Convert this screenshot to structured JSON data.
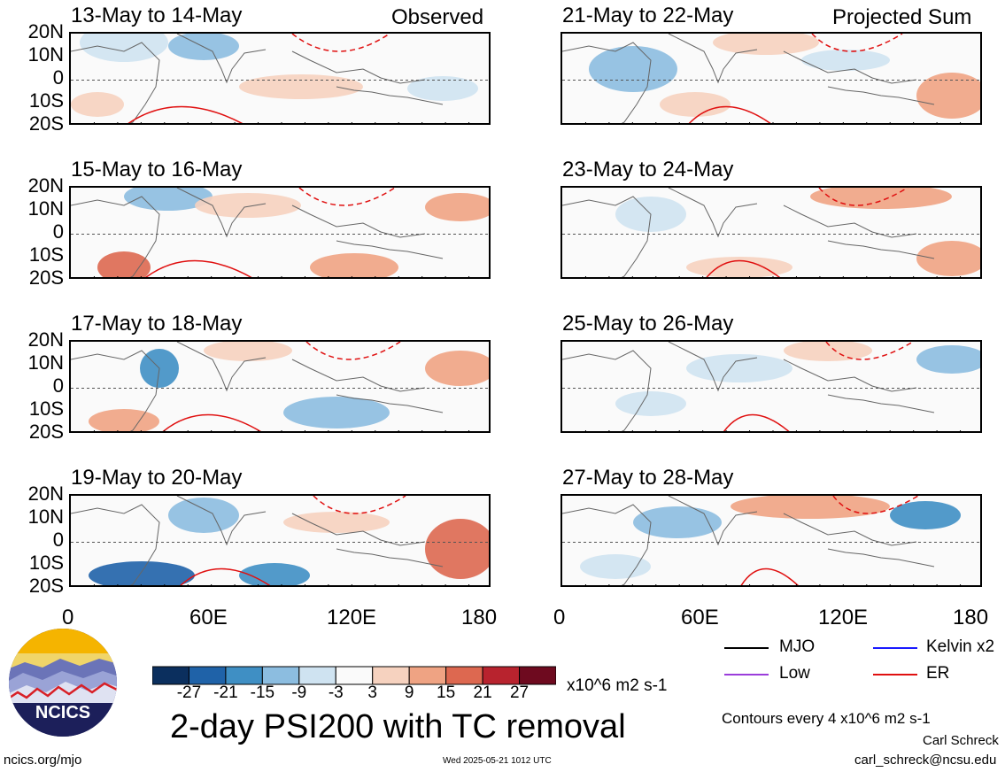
{
  "chart_data": {
    "type": "heatmap",
    "title": "2-day PSI200 with TC removal",
    "units": "x10^6 m2 s-1",
    "lat_labels": [
      "20N",
      "10N",
      "0",
      "10S",
      "20S"
    ],
    "lon_labels": [
      "0",
      "60E",
      "120E",
      "180"
    ],
    "contour_note": "Contours every 4 x10^6 m2 s-1",
    "colorbar": {
      "labels": [
        "-27",
        "-21",
        "-15",
        "-9",
        "-3",
        "3",
        "9",
        "15",
        "21",
        "27"
      ],
      "colors": [
        "#0b2f5e",
        "#1f62a8",
        "#3f8fc4",
        "#8cbde0",
        "#cfe3f1",
        "#fafafa",
        "#f6d2bf",
        "#efa383",
        "#dd6850",
        "#b8232e",
        "#6e0a1f"
      ]
    },
    "legend": [
      {
        "label": "MJO",
        "color": "#000000"
      },
      {
        "label": "Kelvin x2",
        "color": "#1a1aff"
      },
      {
        "label": "Low",
        "color": "#9b3ddb"
      },
      {
        "label": "ER",
        "color": "#e01010"
      }
    ],
    "panels": [
      {
        "title": "13-May to 14-May",
        "tag": "Observed"
      },
      {
        "title": "15-May to 16-May",
        "tag": ""
      },
      {
        "title": "17-May to 18-May",
        "tag": ""
      },
      {
        "title": "19-May to 20-May",
        "tag": ""
      },
      {
        "title": "21-May to 22-May",
        "tag": "Projected Sum"
      },
      {
        "title": "23-May to 24-May",
        "tag": ""
      },
      {
        "title": "25-May to 26-May",
        "tag": ""
      },
      {
        "title": "27-May to 28-May",
        "tag": ""
      }
    ]
  },
  "footer": {
    "logo_text": "NCICS",
    "url": "ncics.org/mjo",
    "timestamp": "Wed 2025-05-21 1012 UTC",
    "author": "Carl Schreck",
    "email": "carl_schreck@ncsu.edu"
  }
}
